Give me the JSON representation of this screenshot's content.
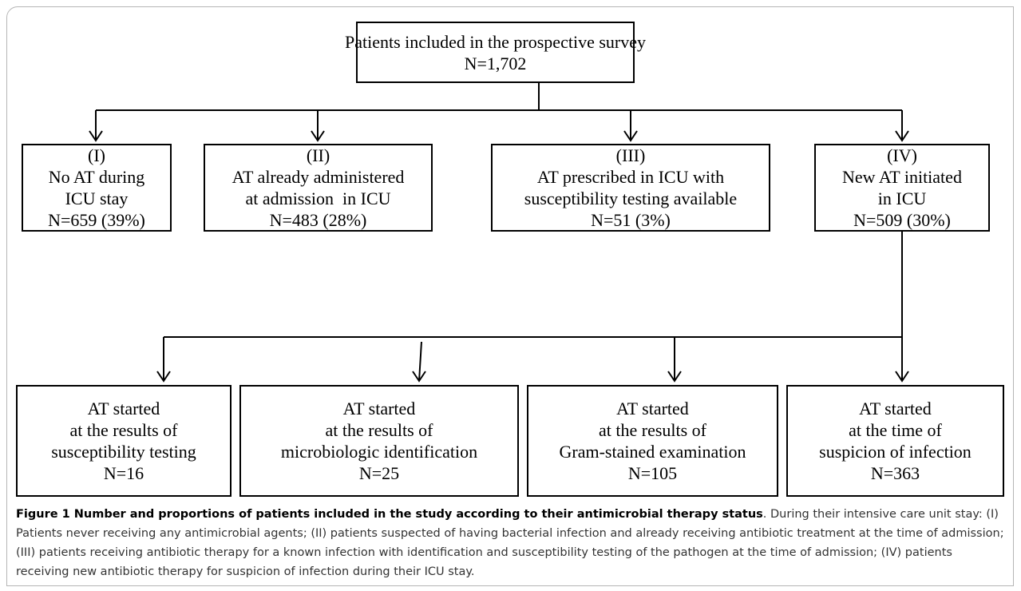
{
  "top": {
    "lines": [
      "Patients included in the prospective survey",
      "N=1,702"
    ]
  },
  "groups": [
    {
      "lines": [
        "(I)",
        "No AT during",
        "ICU stay",
        "N=659 (39%)"
      ]
    },
    {
      "lines": [
        "(II)",
        "AT already administered",
        "at admission  in ICU",
        "N=483 (28%)"
      ]
    },
    {
      "lines": [
        "(III)",
        "AT prescribed in ICU with",
        "susceptibility testing available",
        "N=51 (3%)"
      ]
    },
    {
      "lines": [
        "(IV)",
        "New AT initiated",
        "in ICU",
        "N=509 (30%)"
      ]
    }
  ],
  "subgroups": [
    {
      "lines": [
        "AT started",
        "at the results of",
        "susceptibility testing",
        "N=16"
      ]
    },
    {
      "lines": [
        "AT started",
        "at the results of",
        "microbiologic identification",
        "N=25"
      ]
    },
    {
      "lines": [
        "AT started",
        "at the results of",
        "Gram-stained examination",
        "N=105"
      ]
    },
    {
      "lines": [
        "AT started",
        "at the time of",
        "suspicion of infection",
        "N=363"
      ]
    }
  ],
  "caption": {
    "title": "Figure 1 Number and proportions of patients included in the study according to their antimicrobial therapy status",
    "text": ". During their intensive care unit stay: (I) Patients never receiving any antimicrobial agents; (II) patients suspected of having bacterial infection and already receiving antibiotic treatment at the time of admission; (III) patients receiving antibiotic therapy for a known infection with identification and susceptibility testing of the pathogen at the time of admission; (IV) patients receiving new antibiotic therapy for suspicion of infection during their ICU stay."
  }
}
